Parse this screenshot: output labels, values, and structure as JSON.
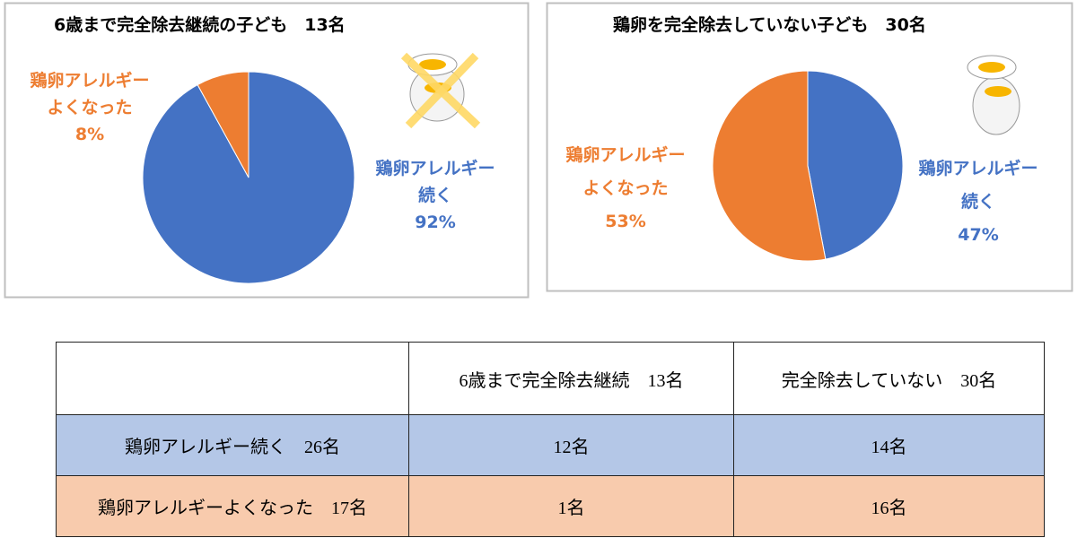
{
  "chart_data": [
    {
      "type": "pie",
      "title": "6歳まで完全除去継続の子ども　13名",
      "categories": [
        "鶏卵アレルギー続く",
        "鶏卵アレルギーよくなった"
      ],
      "values": [
        92,
        8
      ],
      "value_labels": [
        "92%",
        "8%"
      ],
      "colors": [
        "#4472c4",
        "#ed7d31"
      ]
    },
    {
      "type": "pie",
      "title": "鶏卵を完全除去していない子ども　30名",
      "categories": [
        "鶏卵アレルギー続く",
        "鶏卵アレルギーよくなった"
      ],
      "values": [
        47,
        53
      ],
      "value_labels": [
        "47%",
        "53%"
      ],
      "colors": [
        "#4472c4",
        "#ed7d31"
      ]
    }
  ],
  "table": {
    "header": [
      "6歳まで完全除去継続　13名",
      "完全除去していない　30名"
    ],
    "rows": [
      [
        "鶏卵アレルギー続く　26名",
        "12名",
        "14名"
      ],
      [
        "鶏卵アレルギーよくなった　17名",
        "1名",
        "16名"
      ]
    ]
  }
}
